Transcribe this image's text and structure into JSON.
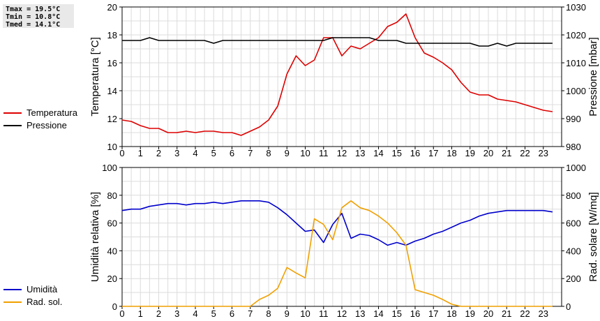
{
  "stats": {
    "tmax": "Tmax = 19.5°C",
    "tmin": "Tmin = 10.8°C",
    "tmed": "Tmed = 14.1°C"
  },
  "chart_data": [
    {
      "type": "line",
      "ylabel": "Temperatura [°C]",
      "ylabel2": "Pressione [mbar]",
      "xlim": [
        0,
        24
      ],
      "ylim": [
        10,
        20
      ],
      "ylim2": [
        980,
        1030
      ],
      "xticks": [
        0,
        1,
        2,
        3,
        4,
        5,
        6,
        7,
        8,
        9,
        10,
        11,
        12,
        13,
        14,
        15,
        16,
        17,
        18,
        19,
        20,
        21,
        22,
        23
      ],
      "yticks": [
        10,
        12,
        14,
        16,
        18,
        20
      ],
      "yticks2": [
        980,
        990,
        1000,
        1010,
        1020,
        1030
      ],
      "grid": true,
      "legend_position": "left",
      "series": [
        {
          "name": "Temperatura",
          "axis": "left",
          "color": "#dd0000",
          "x": [
            0,
            0.5,
            1,
            1.5,
            2,
            2.5,
            3,
            3.5,
            4,
            4.5,
            5,
            5.5,
            6,
            6.5,
            7,
            7.5,
            8,
            8.5,
            9,
            9.5,
            10,
            10.5,
            11,
            11.5,
            12,
            12.5,
            13,
            13.5,
            14,
            14.5,
            15,
            15.5,
            16,
            16.5,
            17,
            17.5,
            18,
            18.5,
            19,
            19.5,
            20,
            20.5,
            21,
            21.5,
            22,
            22.5,
            23,
            23.5
          ],
          "values": [
            11.9,
            11.8,
            11.5,
            11.3,
            11.3,
            11.0,
            11.0,
            11.1,
            11.0,
            11.1,
            11.1,
            11.0,
            11.0,
            10.8,
            11.1,
            11.4,
            11.9,
            12.9,
            15.2,
            16.5,
            15.8,
            16.2,
            17.8,
            17.8,
            16.5,
            17.2,
            17.0,
            17.4,
            17.8,
            18.6,
            18.9,
            19.5,
            17.8,
            16.7,
            16.4,
            16.0,
            15.5,
            14.6,
            13.9,
            13.7,
            13.7,
            13.4,
            13.3,
            13.2,
            13.0,
            12.8,
            12.6,
            12.5
          ]
        },
        {
          "name": "Pressione",
          "axis": "right",
          "color": "#000000",
          "x": [
            0,
            0.5,
            1,
            1.5,
            2,
            2.5,
            3,
            3.5,
            4,
            4.5,
            5,
            5.5,
            6,
            6.5,
            7,
            7.5,
            8,
            8.5,
            9,
            9.5,
            10,
            10.5,
            11,
            11.5,
            12,
            12.5,
            13,
            13.5,
            14,
            14.5,
            15,
            15.5,
            16,
            16.5,
            17,
            17.5,
            18,
            18.5,
            19,
            19.5,
            20,
            20.5,
            21,
            21.5,
            22,
            22.5,
            23,
            23.5
          ],
          "values": [
            1018,
            1018,
            1018,
            1019,
            1018,
            1018,
            1018,
            1018,
            1018,
            1018,
            1017,
            1018,
            1018,
            1018,
            1018,
            1018,
            1018,
            1018,
            1018,
            1018,
            1018,
            1018,
            1018,
            1019,
            1019,
            1019,
            1019,
            1019,
            1018,
            1018,
            1018,
            1017,
            1017,
            1017,
            1017,
            1017,
            1017,
            1017,
            1017,
            1016,
            1016,
            1017,
            1016,
            1017,
            1017,
            1017,
            1017,
            1017
          ]
        }
      ]
    },
    {
      "type": "line",
      "ylabel": "Umidità relativa [%]",
      "ylabel2": "Rad. solare [W/mq]",
      "xlim": [
        0,
        24
      ],
      "ylim": [
        0,
        100
      ],
      "ylim2": [
        0,
        1000
      ],
      "xticks": [
        0,
        1,
        2,
        3,
        4,
        5,
        6,
        7,
        8,
        9,
        10,
        11,
        12,
        13,
        14,
        15,
        16,
        17,
        18,
        19,
        20,
        21,
        22,
        23
      ],
      "yticks": [
        0,
        20,
        40,
        60,
        80,
        100
      ],
      "yticks2": [
        0,
        200,
        400,
        600,
        800,
        1000
      ],
      "grid": true,
      "legend_position": "left",
      "series": [
        {
          "name": "Umidità",
          "axis": "left",
          "color": "#0000cc",
          "x": [
            0,
            0.5,
            1,
            1.5,
            2,
            2.5,
            3,
            3.5,
            4,
            4.5,
            5,
            5.5,
            6,
            6.5,
            7,
            7.5,
            8,
            8.5,
            9,
            9.5,
            10,
            10.5,
            11,
            11.5,
            12,
            12.5,
            13,
            13.5,
            14,
            14.5,
            15,
            15.5,
            16,
            16.5,
            17,
            17.5,
            18,
            18.5,
            19,
            19.5,
            20,
            20.5,
            21,
            21.5,
            22,
            22.5,
            23,
            23.5
          ],
          "values": [
            69,
            70,
            70,
            72,
            73,
            74,
            74,
            73,
            74,
            74,
            75,
            74,
            75,
            76,
            76,
            76,
            75,
            71,
            66,
            60,
            54,
            55,
            46,
            59,
            67,
            49,
            52,
            51,
            48,
            44,
            46,
            44,
            47,
            49,
            52,
            54,
            57,
            60,
            62,
            65,
            67,
            68,
            69,
            69,
            69,
            69,
            69,
            68
          ]
        },
        {
          "name": "Rad. sol.",
          "axis": "right",
          "color": "#f0a000",
          "x": [
            0,
            0.5,
            1,
            1.5,
            2,
            2.5,
            3,
            3.5,
            4,
            4.5,
            5,
            5.5,
            6,
            6.5,
            7,
            7.5,
            8,
            8.5,
            9,
            9.5,
            10,
            10.5,
            11,
            11.5,
            12,
            12.5,
            13,
            13.5,
            14,
            14.5,
            15,
            15.5,
            16,
            16.5,
            17,
            17.5,
            18,
            18.5,
            19,
            19.5,
            20,
            20.5,
            21,
            21.5,
            22,
            22.5,
            23,
            23.5
          ],
          "values": [
            0,
            0,
            0,
            0,
            0,
            0,
            0,
            0,
            0,
            0,
            0,
            0,
            0,
            0,
            0,
            50,
            80,
            130,
            280,
            240,
            205,
            630,
            590,
            480,
            710,
            760,
            710,
            690,
            650,
            600,
            530,
            440,
            120,
            100,
            80,
            50,
            15,
            0,
            0,
            0,
            0,
            0,
            0,
            0,
            0,
            0,
            0,
            0
          ]
        }
      ]
    }
  ]
}
